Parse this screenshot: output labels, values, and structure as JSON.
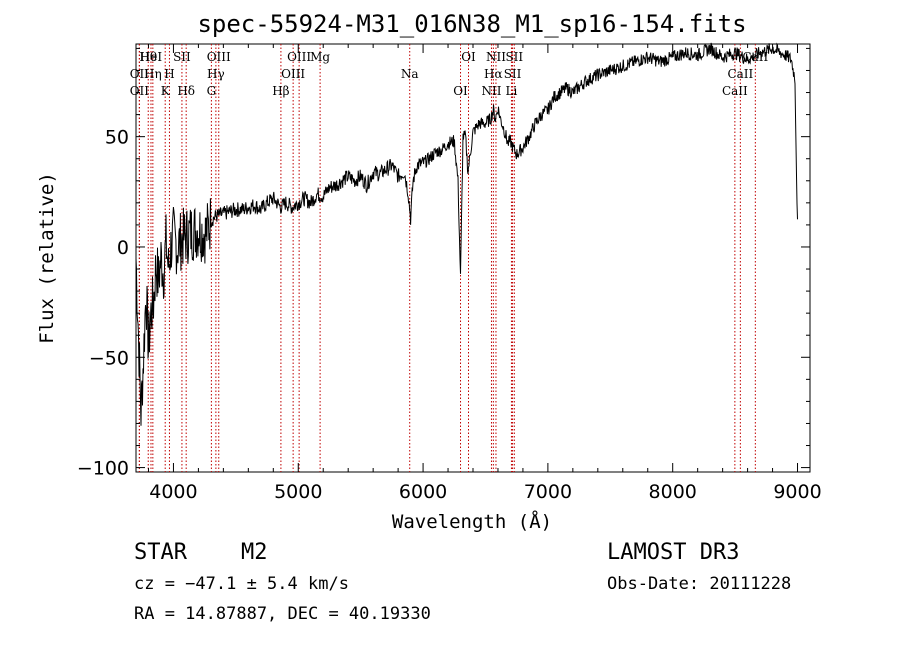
{
  "chart_data": {
    "type": "line",
    "title": "spec-55924-M31_016N38_M1_sp16-154.fits",
    "xlabel": "Wavelength (Å)",
    "ylabel": "Flux (relative)",
    "xlim": [
      3700,
      9100
    ],
    "ylim": [
      -102,
      92
    ],
    "xticks": [
      4000,
      5000,
      6000,
      7000,
      8000,
      9000
    ],
    "yticks": [
      -100,
      -50,
      0,
      50
    ],
    "series": [
      {
        "x": [
          3700,
          3720,
          3740,
          3760,
          3780,
          3800,
          3820,
          3840,
          3860,
          3880,
          3900,
          3920,
          3940,
          3960,
          3980,
          4000,
          4030,
          4060,
          4100,
          4150,
          4200,
          4260,
          4300,
          4340,
          4400,
          4450,
          4500,
          4560,
          4600,
          4650,
          4700,
          4750,
          4800,
          4860,
          4900,
          4950,
          5000,
          5050,
          5100,
          5150,
          5200,
          5250,
          5300,
          5350,
          5400,
          5450,
          5500,
          5550,
          5600,
          5650,
          5700,
          5750,
          5800,
          5850,
          5880,
          5900,
          5920,
          5950,
          6000,
          6050,
          6100,
          6150,
          6200,
          6250,
          6280,
          6300,
          6320,
          6340,
          6360,
          6400,
          6450,
          6500,
          6540,
          6563,
          6580,
          6600,
          6620,
          6650,
          6680,
          6700,
          6720,
          6750,
          6800,
          6850,
          6900,
          6950,
          7000,
          7050,
          7100,
          7150,
          7200,
          7300,
          7400,
          7500,
          7600,
          7700,
          7800,
          7900,
          8000,
          8100,
          8200,
          8300,
          8400,
          8500,
          8600,
          8700,
          8800,
          8900,
          8950,
          8980,
          8990,
          9000
        ],
        "values": [
          -5,
          -40,
          -75,
          -50,
          -20,
          -45,
          -30,
          -25,
          -8,
          -15,
          -5,
          -12,
          2,
          -10,
          0,
          5,
          0,
          3,
          5,
          7,
          8,
          6,
          12,
          14,
          15,
          16,
          17,
          17,
          18,
          19,
          17,
          20,
          22,
          18,
          20,
          18,
          20,
          22,
          20,
          24,
          23,
          27,
          28,
          30,
          32,
          30,
          32,
          28,
          34,
          33,
          35,
          37,
          32,
          34,
          25,
          13,
          30,
          37,
          38,
          40,
          43,
          44,
          47,
          48,
          30,
          -14,
          50,
          50,
          34,
          52,
          56,
          56,
          58,
          62,
          58,
          63,
          58,
          53,
          47,
          48,
          45,
          42,
          45,
          50,
          56,
          60,
          62,
          68,
          70,
          72,
          70,
          75,
          78,
          80,
          82,
          84,
          86,
          84,
          86,
          88,
          87,
          90,
          86,
          88,
          85,
          88,
          90,
          87,
          85,
          76,
          40,
          10
        ]
      }
    ],
    "spectral_lines": [
      {
        "name": "Hθ",
        "x": 3798
      },
      {
        "name": "OII",
        "x": 3727
      },
      {
        "name": "OII",
        "x": 3727
      },
      {
        "name": "HeI",
        "x": 3820
      },
      {
        "name": "Hη",
        "x": 3835
      },
      {
        "name": "K",
        "x": 3934
      },
      {
        "name": "SII",
        "x": 4068
      },
      {
        "name": "H",
        "x": 3968
      },
      {
        "name": "Hδ",
        "x": 4102
      },
      {
        "name": "OIII",
        "x": 4363
      },
      {
        "name": "Hγ",
        "x": 4340
      },
      {
        "name": "G",
        "x": 4304
      },
      {
        "name": "OIII",
        "x": 5007
      },
      {
        "name": "OIII",
        "x": 4959
      },
      {
        "name": "Hβ",
        "x": 4861
      },
      {
        "name": "Mg",
        "x": 5175
      },
      {
        "name": "Na",
        "x": 5893
      },
      {
        "name": "OI",
        "x": 6300
      },
      {
        "name": "OI",
        "x": 6364
      },
      {
        "name": "Hα",
        "x": 6563
      },
      {
        "name": "NII",
        "x": 6548
      },
      {
        "name": "NII",
        "x": 6584
      },
      {
        "name": "SII",
        "x": 6717
      },
      {
        "name": "Li",
        "x": 6708
      },
      {
        "name": "SII",
        "x": 6731
      },
      {
        "name": "CaII",
        "x": 8542
      },
      {
        "name": "CaII",
        "x": 8498
      },
      {
        "name": "CaII",
        "x": 8662
      }
    ]
  },
  "info": {
    "class": "STAR",
    "subclass": "M2",
    "survey": "LAMOST DR3",
    "cz": "cz = −47.1 ± 5.4 km/s",
    "obs_date": "Obs-Date: 20111228",
    "radec": "RA =  14.87887, DEC =  40.19330"
  }
}
